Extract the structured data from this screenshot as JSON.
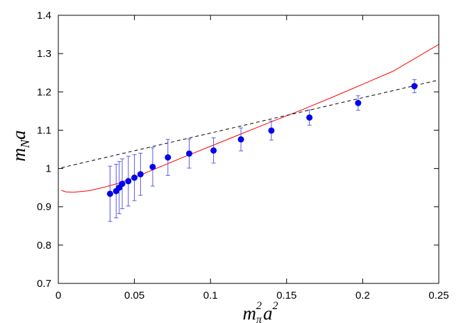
{
  "chart_data": {
    "type": "scatter",
    "xlim": [
      0,
      0.25
    ],
    "ylim": [
      0.7,
      1.4
    ],
    "xticks": [
      0,
      0.05,
      0.1,
      0.15,
      0.2,
      0.25
    ],
    "xtick_labels": [
      "0",
      "0.05",
      "0.1",
      "0.15",
      "0.2",
      "0.25"
    ],
    "yticks": [
      0.7,
      0.8,
      0.9,
      1.0,
      1.1,
      1.2,
      1.3,
      1.4
    ],
    "ytick_labels": [
      "0.7",
      "0.8",
      "0.9",
      "1",
      "1.1",
      "1.2",
      "1.3",
      "1.4"
    ],
    "xlabel": {
      "main": "m",
      "sub": "π",
      "sup1": "2",
      "mid": "a",
      "sup2": "2"
    },
    "ylabel": {
      "main": "m",
      "sub": "N",
      "tail": "a"
    },
    "grid": false,
    "colors": {
      "points": "#0000ee",
      "errorbars": "#5a5ae6",
      "fit": "#ff0000",
      "linear": "#000000"
    },
    "points": [
      {
        "x": 0.034,
        "y": 0.934,
        "err": 0.072
      },
      {
        "x": 0.038,
        "y": 0.941,
        "err": 0.07
      },
      {
        "x": 0.04,
        "y": 0.95,
        "err": 0.068
      },
      {
        "x": 0.042,
        "y": 0.96,
        "err": 0.065
      },
      {
        "x": 0.046,
        "y": 0.967,
        "err": 0.065
      },
      {
        "x": 0.05,
        "y": 0.976,
        "err": 0.06
      },
      {
        "x": 0.054,
        "y": 0.985,
        "err": 0.055
      },
      {
        "x": 0.062,
        "y": 1.004,
        "err": 0.05
      },
      {
        "x": 0.072,
        "y": 1.029,
        "err": 0.047
      },
      {
        "x": 0.086,
        "y": 1.039,
        "err": 0.038
      },
      {
        "x": 0.102,
        "y": 1.047,
        "err": 0.033
      },
      {
        "x": 0.12,
        "y": 1.076,
        "err": 0.03
      },
      {
        "x": 0.14,
        "y": 1.099,
        "err": 0.025
      },
      {
        "x": 0.165,
        "y": 1.133,
        "err": 0.02
      },
      {
        "x": 0.197,
        "y": 1.171,
        "err": 0.019
      },
      {
        "x": 0.234,
        "y": 1.215,
        "err": 0.017
      }
    ],
    "fit_curve": [
      [
        0.002,
        0.943
      ],
      [
        0.005,
        0.939
      ],
      [
        0.01,
        0.938
      ],
      [
        0.02,
        0.942
      ],
      [
        0.03,
        0.951
      ],
      [
        0.04,
        0.962
      ],
      [
        0.05,
        0.976
      ],
      [
        0.06,
        0.993
      ],
      [
        0.08,
        1.026
      ],
      [
        0.1,
        1.058
      ],
      [
        0.12,
        1.09
      ],
      [
        0.14,
        1.122
      ],
      [
        0.16,
        1.153
      ],
      [
        0.18,
        1.186
      ],
      [
        0.2,
        1.22
      ],
      [
        0.22,
        1.254
      ],
      [
        0.25,
        1.324
      ]
    ],
    "linear_line": [
      [
        0.002,
        1.002
      ],
      [
        0.25,
        1.231
      ]
    ]
  }
}
